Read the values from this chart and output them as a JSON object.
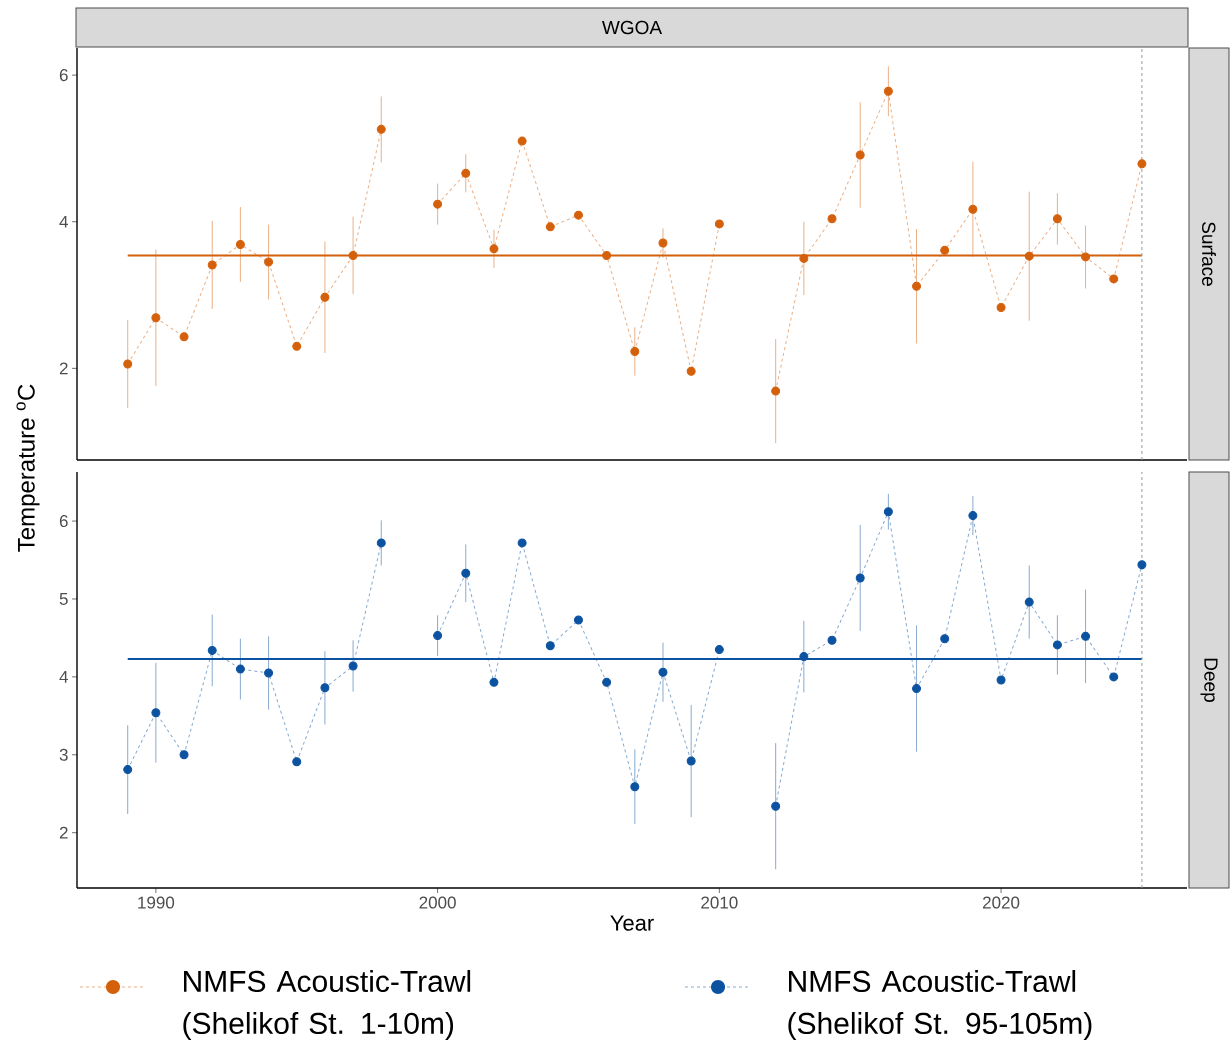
{
  "chart_data": [
    {
      "type": "line",
      "title": "WGOA",
      "y2label": "Surface",
      "ylabel": "Temperature $^{o}$C",
      "xlim": [
        1987.2,
        2026.6
      ],
      "ylim": [
        0.75,
        6.37
      ],
      "yticks": [
        2,
        4,
        6
      ],
      "tick_labels": "y",
      "marker": "circle",
      "line_style": "dashed",
      "legend": "bottom",
      "x": [
        1989,
        1990,
        1991,
        1992,
        1993,
        1994,
        1995,
        1996,
        1997,
        1998,
        1999,
        2000,
        2001,
        2002,
        2003,
        2004,
        2005,
        2006,
        2007,
        2008,
        2009,
        2010,
        2011,
        2012,
        2013,
        2014,
        2015,
        2016,
        2017,
        2018,
        2019,
        2020,
        2021,
        2022,
        2023,
        2024,
        2025
      ],
      "ref_lines": [
        {
          "axis": "y",
          "value": 3.54,
          "color": "#d4600b",
          "line_style": "solid"
        },
        {
          "axis": "x",
          "value": 2025,
          "color": "#999999",
          "line_style": "dashed"
        }
      ],
      "series": [
        {
          "name": "NMFS Acoustic-Trawl (Shelikof St.  1-10m)",
          "color": "#d4600b",
          "values": [
            2.06,
            2.69,
            2.43,
            3.41,
            3.69,
            3.45,
            2.3,
            2.97,
            3.54,
            5.26,
            null,
            4.24,
            4.66,
            3.63,
            5.1,
            3.93,
            4.09,
            3.54,
            2.23,
            3.71,
            1.96,
            3.97,
            null,
            1.69,
            3.5,
            4.04,
            4.91,
            5.78,
            3.12,
            3.61,
            4.17,
            2.83,
            3.53,
            4.04,
            3.52,
            3.22,
            4.79
          ],
          "errors": [
            0.6,
            0.93,
            null,
            0.6,
            0.51,
            0.51,
            null,
            0.76,
            0.53,
            0.45,
            null,
            0.28,
            0.26,
            0.26,
            null,
            null,
            null,
            null,
            0.33,
            0.2,
            null,
            null,
            null,
            0.71,
            0.5,
            null,
            0.72,
            0.34,
            0.78,
            null,
            0.65,
            null,
            0.88,
            0.35,
            0.43,
            null,
            null
          ]
        }
      ]
    },
    {
      "type": "line",
      "y2label": "Deep",
      "xlabel": "Year",
      "xlim": [
        1987.2,
        2026.6
      ],
      "xticks": [
        1990,
        2000,
        2010,
        2020
      ],
      "ylim": [
        1.29,
        6.63
      ],
      "yticks": [
        2,
        3,
        4,
        5,
        6
      ],
      "marker": "circle",
      "line_style": "dashed",
      "legend": "bottom",
      "x": [
        1989,
        1990,
        1991,
        1992,
        1993,
        1994,
        1995,
        1996,
        1997,
        1998,
        1999,
        2000,
        2001,
        2002,
        2003,
        2004,
        2005,
        2006,
        2007,
        2008,
        2009,
        2010,
        2011,
        2012,
        2013,
        2014,
        2015,
        2016,
        2017,
        2018,
        2019,
        2020,
        2021,
        2022,
        2023,
        2024,
        2025
      ],
      "ref_lines": [
        {
          "axis": "y",
          "value": 4.23,
          "color": "#0b52a0",
          "line_style": "solid"
        },
        {
          "axis": "x",
          "value": 2025,
          "color": "#999999",
          "line_style": "dashed"
        }
      ],
      "series": [
        {
          "name": "NMFS Acoustic-Trawl (Shelikof St. 95-105m)",
          "color": "#0b52a0",
          "values": [
            2.81,
            3.54,
            3.0,
            4.34,
            4.1,
            4.05,
            2.91,
            3.86,
            4.14,
            5.72,
            null,
            4.53,
            5.33,
            3.93,
            5.72,
            4.4,
            4.73,
            3.93,
            2.59,
            4.06,
            2.92,
            4.35,
            null,
            2.34,
            4.26,
            4.47,
            5.27,
            6.12,
            3.85,
            4.49,
            6.07,
            3.96,
            4.96,
            4.41,
            4.52,
            4.0,
            5.44
          ],
          "errors": [
            0.57,
            0.64,
            null,
            0.46,
            0.39,
            0.47,
            null,
            0.47,
            0.33,
            0.29,
            null,
            0.26,
            0.37,
            null,
            null,
            null,
            null,
            null,
            0.48,
            0.38,
            0.72,
            null,
            null,
            0.81,
            0.46,
            null,
            0.68,
            0.23,
            0.81,
            null,
            0.25,
            null,
            0.47,
            0.38,
            0.6,
            null,
            null
          ]
        }
      ]
    }
  ]
}
